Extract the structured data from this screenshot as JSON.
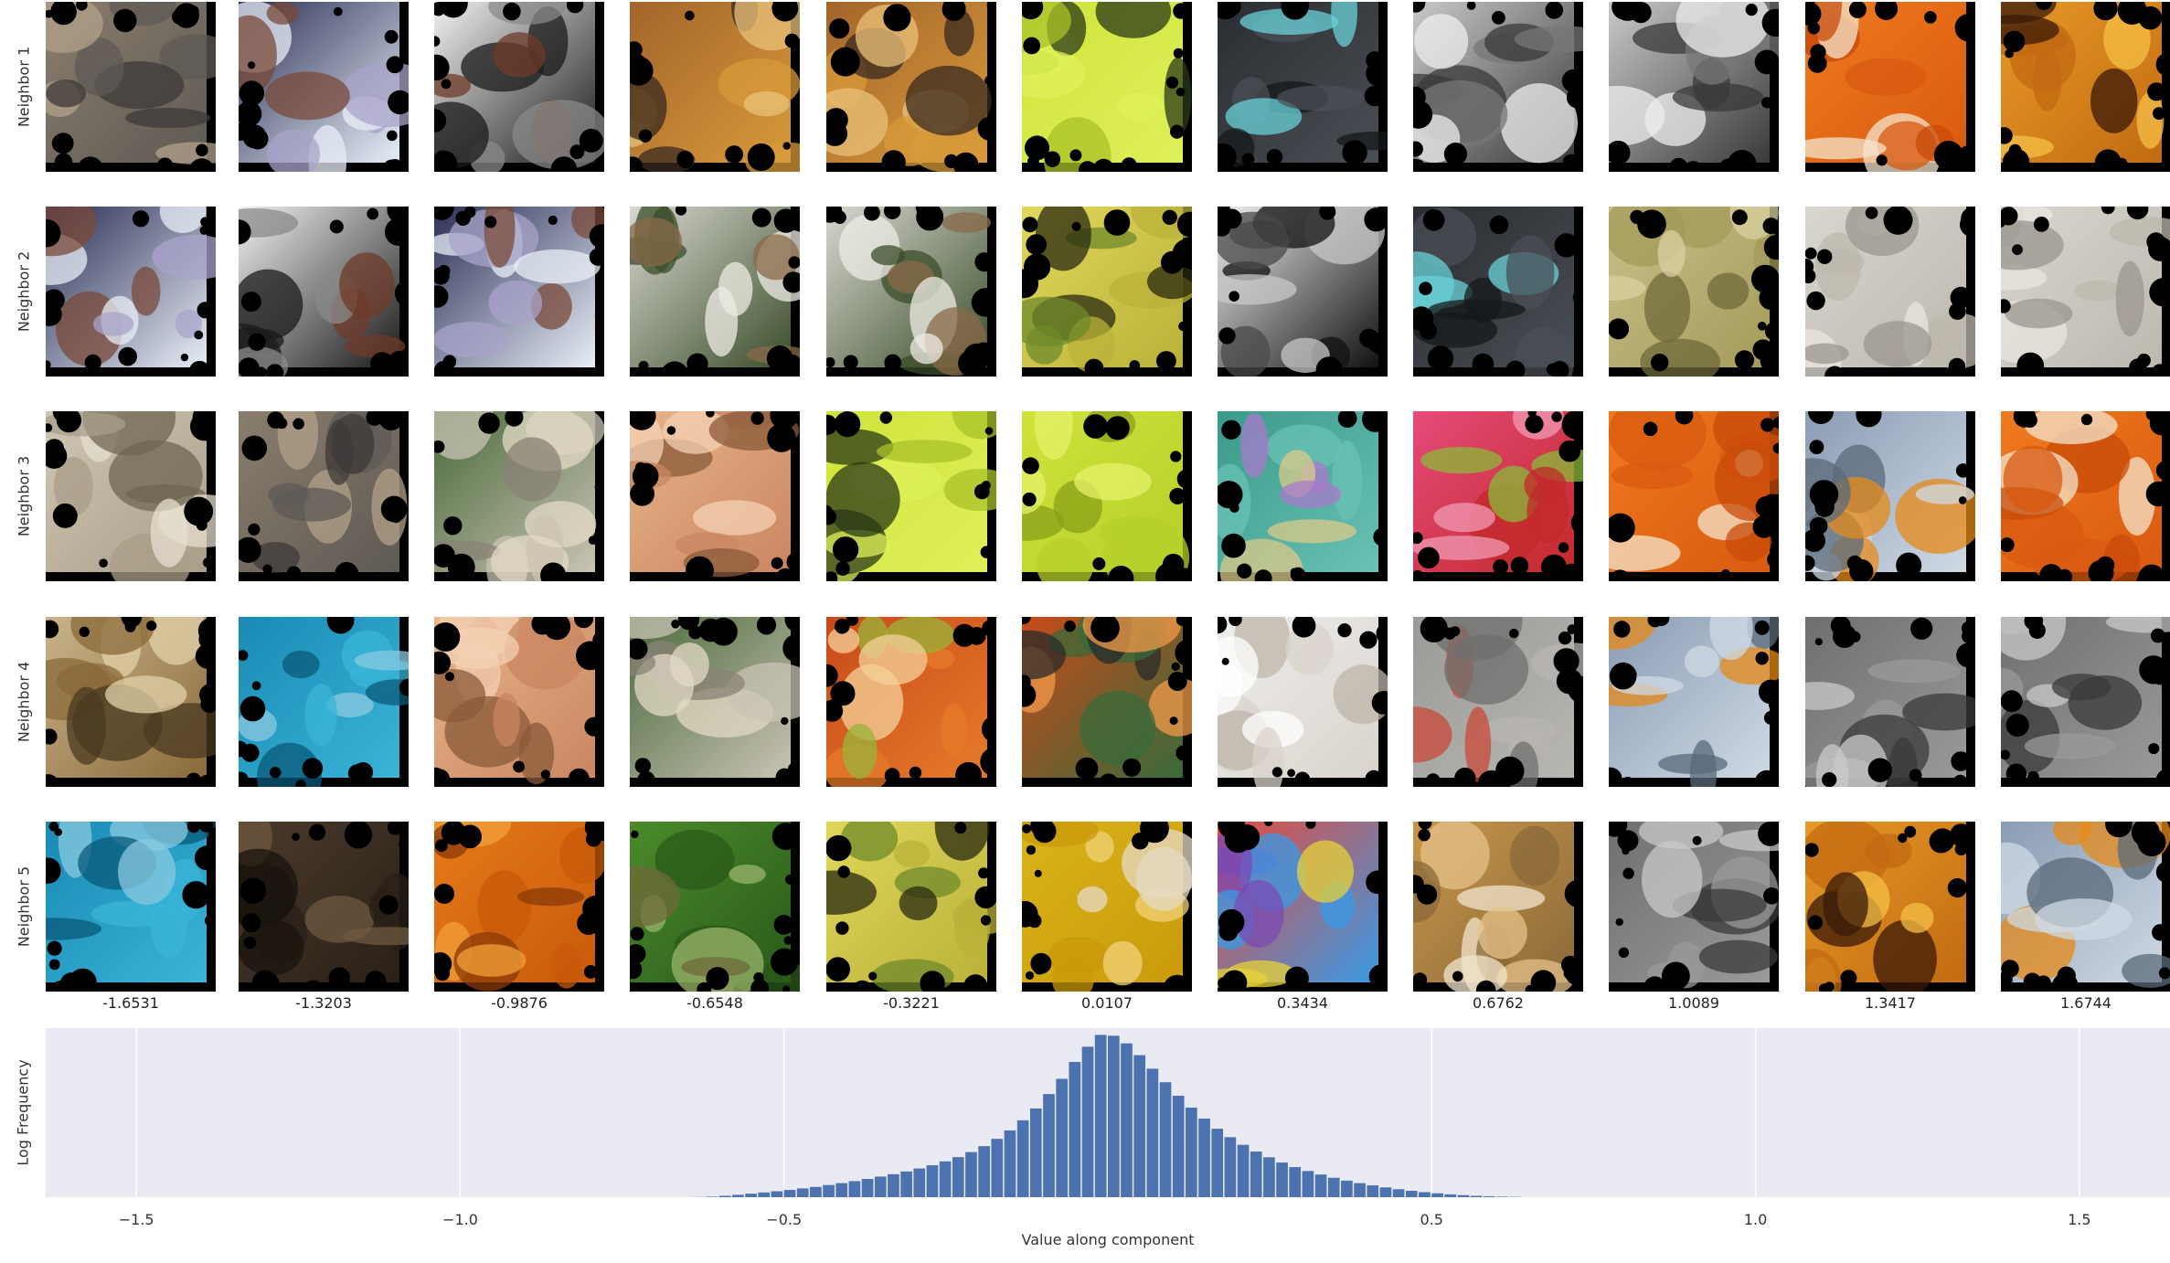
{
  "row_labels": [
    "Neighbor 1",
    "Neighbor 2",
    "Neighbor 3",
    "Neighbor 4",
    "Neighbor 5"
  ],
  "column_values": [
    "-1.6531",
    "-1.3203",
    "-0.9876",
    "-0.6548",
    "-0.3221",
    "0.0107",
    "0.3434",
    "0.6762",
    "1.0089",
    "1.3417",
    "1.6744"
  ],
  "thumbnails": [
    [
      "armadillo",
      "dogs-and-owners",
      "great-dane",
      "saxophone-player",
      "saxophone-player",
      "wilson-tennis-ball",
      "car-stereo",
      "teapot-handle",
      "teapot-handle",
      "oranges",
      "pencil-on-wood"
    ],
    [
      "dogs-and-owners",
      "great-dane",
      "dogs-and-owners",
      "picket-fence",
      "picket-fence",
      "bananas",
      "panda",
      "car-stereo",
      "insect-on-wall",
      "ceramic-plate",
      "ceramic-plate"
    ],
    [
      "shaggy-dog",
      "armadillo",
      "fisherman-with-sturgeon",
      "sea-anemone",
      "wilson-tennis-ball",
      "tennis-balls",
      "knitted-sock",
      "flowers-and-apples",
      "oranges",
      "orange-on-cloth",
      "oranges"
    ],
    [
      "snake-coiled",
      "hammerhead-shark",
      "sea-anemone",
      "fisherman-with-sturgeon",
      "food-dish",
      "coral-reef",
      "white-cloth",
      "ruler",
      "orange-on-cloth",
      "grayscale-scene",
      "grayscale-scene"
    ],
    [
      "hammerhead-shark",
      "dark-scene",
      "pumpkin",
      "green-snake",
      "bananas",
      "yellow-object",
      "colorful-puzzle",
      "brass-instrument",
      "grayscale-scene",
      "pencil-on-wood",
      "orange-on-cloth"
    ]
  ],
  "colors": {
    "plot_background": "#eaeaf2",
    "bar_color": "#4c72b0",
    "grid_color": "#ffffff",
    "mask_color": "#000000"
  },
  "chart_data": {
    "type": "bar",
    "title": "",
    "xlabel": "Value along component",
    "ylabel": "Log Frequency",
    "xlim": [
      -1.64,
      1.64
    ],
    "xticks": [
      -1.5,
      -1.0,
      -0.5,
      0.5,
      1.0,
      1.5
    ],
    "xtick_labels": [
      "−1.5",
      "−1.0",
      "−0.5",
      "0.5",
      "1.0",
      "1.5"
    ],
    "grid": true,
    "bin_width": 0.02,
    "bins": [
      [
        -0.63,
        0.001
      ],
      [
        -0.61,
        0.003
      ],
      [
        -0.59,
        0.008
      ],
      [
        -0.57,
        0.014
      ],
      [
        -0.55,
        0.021
      ],
      [
        -0.53,
        0.028
      ],
      [
        -0.51,
        0.035
      ],
      [
        -0.49,
        0.043
      ],
      [
        -0.47,
        0.052
      ],
      [
        -0.45,
        0.061
      ],
      [
        -0.43,
        0.072
      ],
      [
        -0.41,
        0.083
      ],
      [
        -0.39,
        0.095
      ],
      [
        -0.37,
        0.108
      ],
      [
        -0.35,
        0.122
      ],
      [
        -0.33,
        0.136
      ],
      [
        -0.31,
        0.152
      ],
      [
        -0.29,
        0.17
      ],
      [
        -0.27,
        0.189
      ],
      [
        -0.25,
        0.212
      ],
      [
        -0.23,
        0.237
      ],
      [
        -0.21,
        0.267
      ],
      [
        -0.19,
        0.302
      ],
      [
        -0.17,
        0.345
      ],
      [
        -0.15,
        0.395
      ],
      [
        -0.13,
        0.455
      ],
      [
        -0.11,
        0.525
      ],
      [
        -0.09,
        0.61
      ],
      [
        -0.07,
        0.7
      ],
      [
        -0.05,
        0.8
      ],
      [
        -0.03,
        0.89
      ],
      [
        -0.01,
        0.96
      ],
      [
        0.01,
        0.955
      ],
      [
        0.03,
        0.91
      ],
      [
        0.05,
        0.84
      ],
      [
        0.07,
        0.76
      ],
      [
        0.09,
        0.68
      ],
      [
        0.11,
        0.6
      ],
      [
        0.13,
        0.53
      ],
      [
        0.15,
        0.465
      ],
      [
        0.17,
        0.405
      ],
      [
        0.19,
        0.355
      ],
      [
        0.21,
        0.31
      ],
      [
        0.23,
        0.27
      ],
      [
        0.25,
        0.236
      ],
      [
        0.27,
        0.205
      ],
      [
        0.29,
        0.178
      ],
      [
        0.31,
        0.155
      ],
      [
        0.33,
        0.134
      ],
      [
        0.35,
        0.115
      ],
      [
        0.37,
        0.098
      ],
      [
        0.39,
        0.083
      ],
      [
        0.41,
        0.07
      ],
      [
        0.43,
        0.058
      ],
      [
        0.45,
        0.047
      ],
      [
        0.47,
        0.038
      ],
      [
        0.49,
        0.03
      ],
      [
        0.51,
        0.023
      ],
      [
        0.53,
        0.017
      ],
      [
        0.55,
        0.012
      ],
      [
        0.57,
        0.008
      ],
      [
        0.59,
        0.005
      ],
      [
        0.61,
        0.003
      ],
      [
        0.63,
        0.0015
      ]
    ],
    "ylim": [
      0,
      1
    ]
  }
}
